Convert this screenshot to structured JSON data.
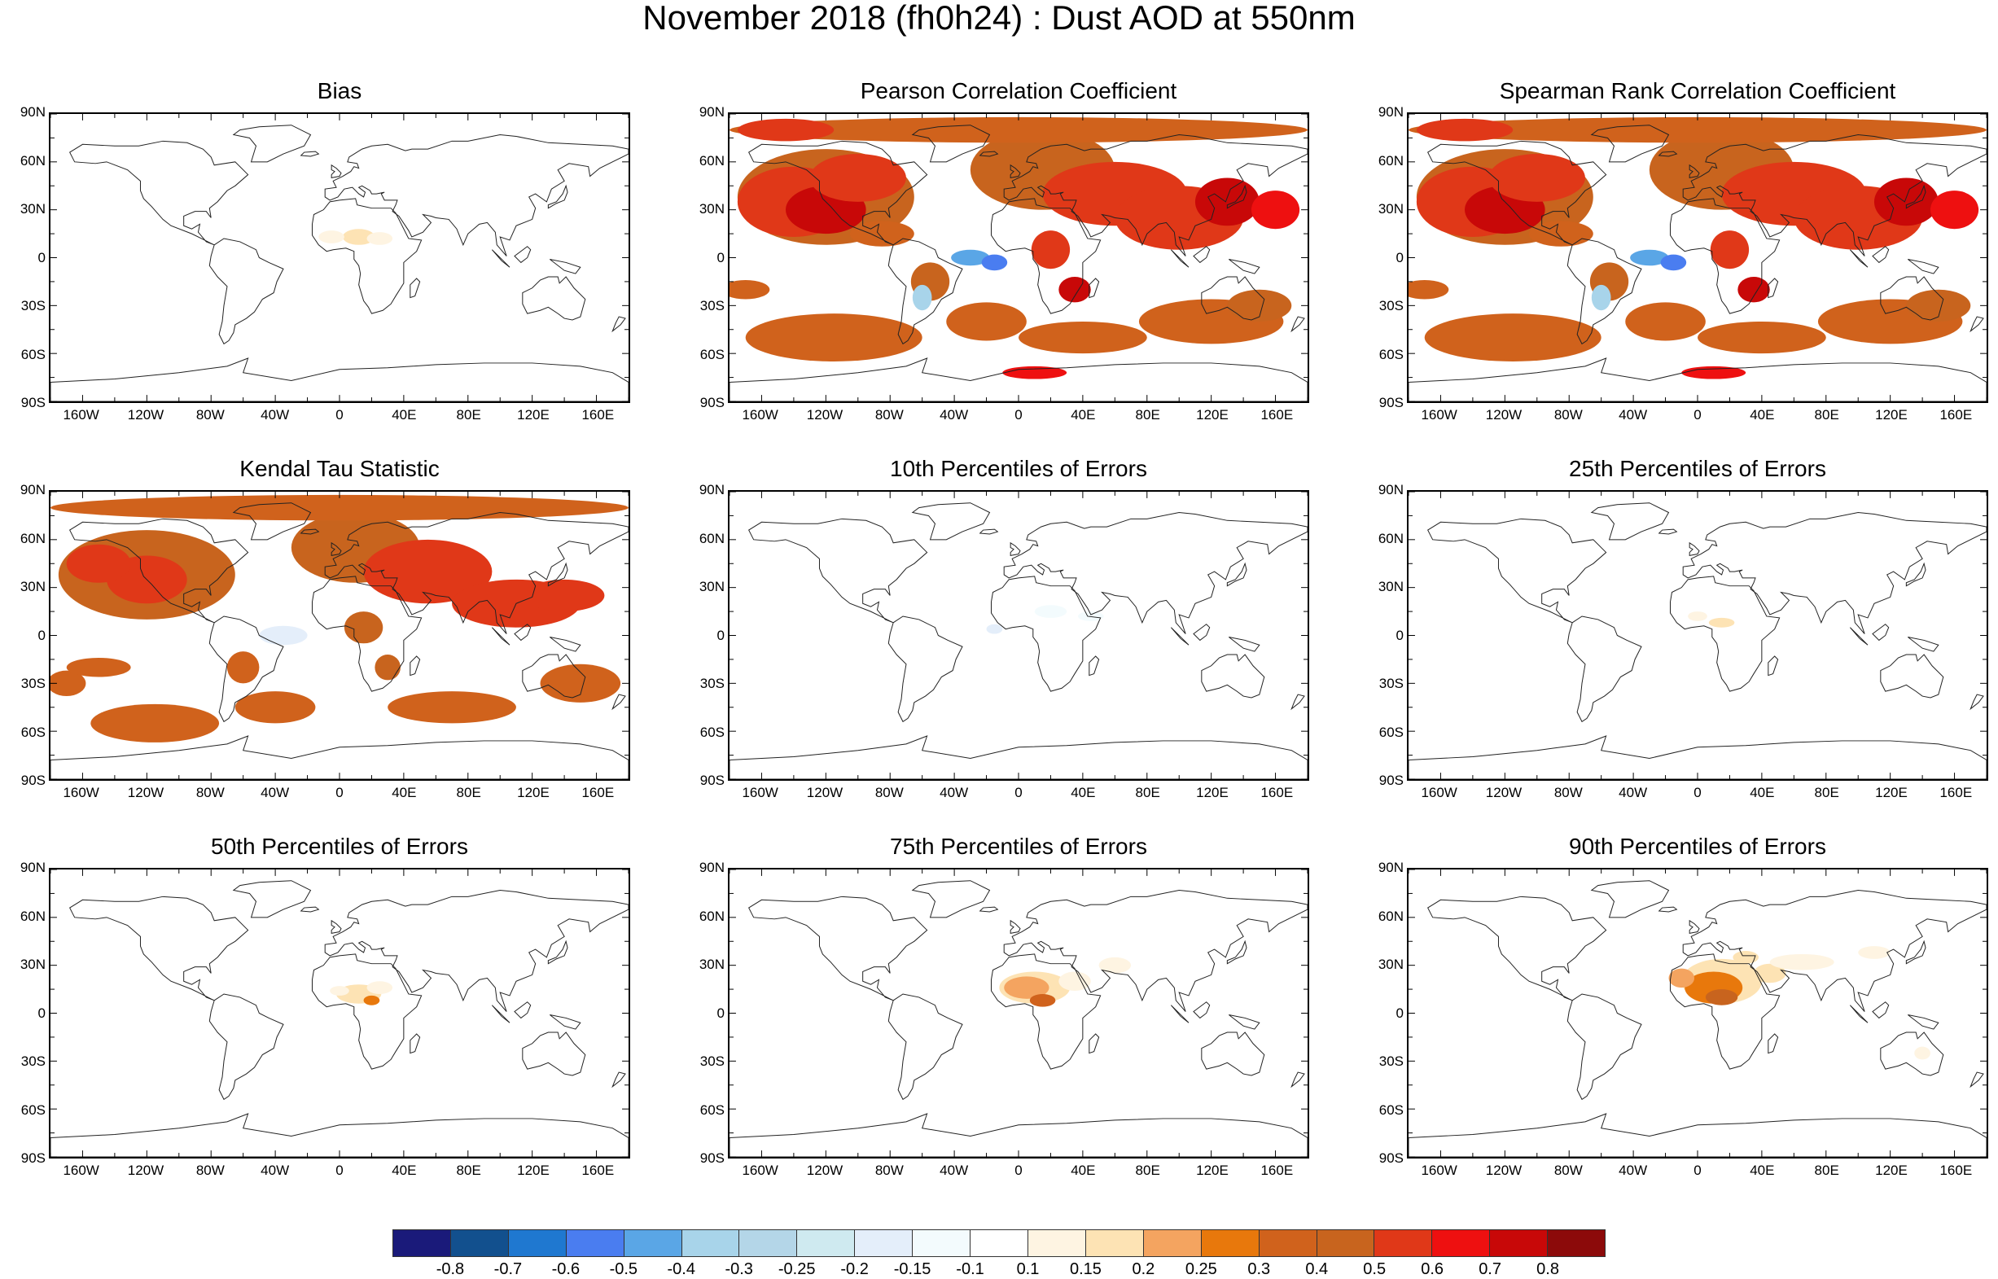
{
  "title": "November 2018 (fh0h24) : Dust AOD at 550nm",
  "lat_labels": [
    "90N",
    "60N",
    "30N",
    "0",
    "30S",
    "60S",
    "90S"
  ],
  "lon_labels": [
    "160W",
    "120W",
    "80W",
    "40W",
    "0",
    "40E",
    "80E",
    "120E",
    "160E"
  ],
  "panels": [
    {
      "title": "Bias",
      "pattern": "bias"
    },
    {
      "title": "Pearson Correlation Coefficient",
      "pattern": "corr"
    },
    {
      "title": "Spearman Rank Correlation Coefficient",
      "pattern": "corr"
    },
    {
      "title": "Kendal Tau Statistic",
      "pattern": "kendall"
    },
    {
      "title": "10th Percentiles of Errors",
      "pattern": "p10"
    },
    {
      "title": "25th Percentiles of Errors",
      "pattern": "p25"
    },
    {
      "title": "50th Percentiles of Errors",
      "pattern": "p50"
    },
    {
      "title": "75th Percentiles of Errors",
      "pattern": "p75"
    },
    {
      "title": "90th Percentiles of Errors",
      "pattern": "p90"
    }
  ],
  "colorbar": {
    "labels": [
      "-0.8",
      "-0.7",
      "-0.6",
      "-0.5",
      "-0.4",
      "-0.3",
      "-0.25",
      "-0.2",
      "-0.15",
      "-0.1",
      "0.1",
      "0.15",
      "0.2",
      "0.25",
      "0.3",
      "0.4",
      "0.5",
      "0.6",
      "0.7",
      "0.8"
    ],
    "colors": [
      "#1a1a7a",
      "#12508e",
      "#1f78d0",
      "#4a7df0",
      "#5aa6e6",
      "#a8d4ea",
      "#b4d6e8",
      "#cfeaf0",
      "#e4eefa",
      "#f3fbfd",
      "#ffffff",
      "#fef4e2",
      "#fde3b4",
      "#f4a460",
      "#e8780c",
      "#d0621c",
      "#c8641e",
      "#e03818",
      "#ee1010",
      "#c80808",
      "#8c0a0a"
    ]
  }
}
